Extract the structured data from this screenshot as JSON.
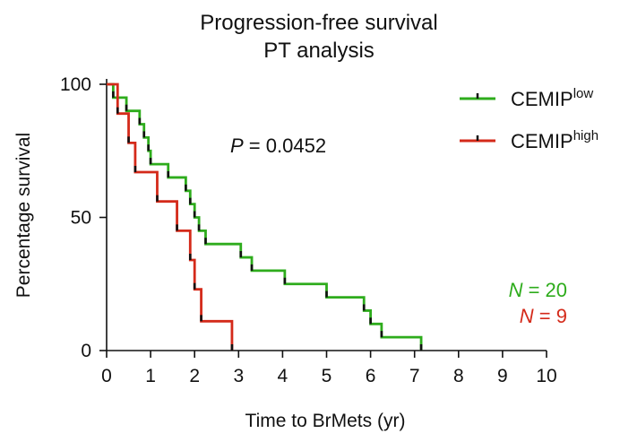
{
  "chart_data": {
    "type": "line",
    "title": "Progression-free survival",
    "subtitle": "PT analysis",
    "xlabel": "Time to BrMets (yr)",
    "ylabel": "Percentage survival",
    "xlim": [
      0,
      10
    ],
    "ylim": [
      0,
      100
    ],
    "xticks": [
      "0",
      "1",
      "2",
      "3",
      "4",
      "5",
      "6",
      "7",
      "8",
      "9",
      "10"
    ],
    "yticks": [
      "0",
      "50",
      "100"
    ],
    "grid": false,
    "legend_position": "top-right",
    "p_value": {
      "prefix": "P",
      "text": " = 0.0452"
    },
    "series": [
      {
        "name": "CEMIP",
        "superscript": "low",
        "color": "#2eac1c",
        "n_label": {
          "prefix": "N",
          "text": " = 20"
        },
        "steps": [
          [
            0,
            100
          ],
          [
            0.15,
            95
          ],
          [
            0.45,
            90
          ],
          [
            0.75,
            85
          ],
          [
            0.85,
            80
          ],
          [
            0.95,
            75
          ],
          [
            1.0,
            70
          ],
          [
            1.4,
            65
          ],
          [
            1.8,
            60
          ],
          [
            1.9,
            55
          ],
          [
            2.0,
            50
          ],
          [
            2.1,
            45
          ],
          [
            2.25,
            40
          ],
          [
            3.05,
            35
          ],
          [
            3.3,
            30
          ],
          [
            4.05,
            25
          ],
          [
            5.0,
            20
          ],
          [
            5.85,
            15
          ],
          [
            6.0,
            10
          ],
          [
            6.25,
            5
          ],
          [
            7.15,
            0
          ]
        ],
        "censored": []
      },
      {
        "name": "CEMIP",
        "superscript": "high",
        "color": "#d42a1a",
        "n_label": {
          "prefix": "N",
          "text": " = 9"
        },
        "steps": [
          [
            0,
            100
          ],
          [
            0.25,
            89
          ],
          [
            0.5,
            78
          ],
          [
            0.65,
            67
          ],
          [
            1.15,
            56
          ],
          [
            1.6,
            45
          ],
          [
            1.9,
            34
          ],
          [
            2.0,
            23
          ],
          [
            2.15,
            11
          ],
          [
            2.85,
            0
          ]
        ],
        "censored": []
      }
    ]
  }
}
